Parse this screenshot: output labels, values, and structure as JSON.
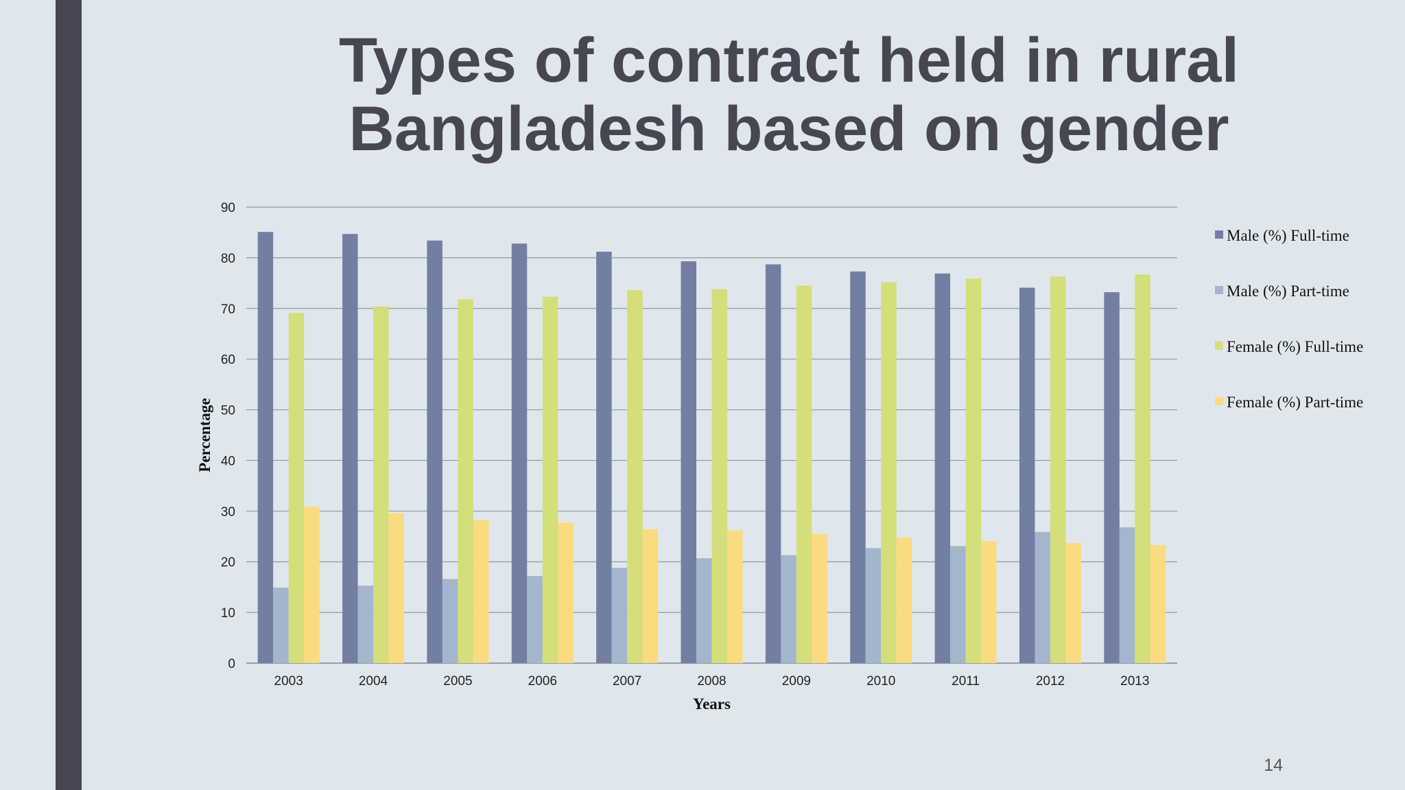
{
  "slide": {
    "title_line1": "Types of contract held in rural",
    "title_line2": "Bangladesh based on gender",
    "page_number": "14",
    "colors": {
      "background": "#e0e7ec",
      "side_bar": "#464753",
      "title": "#464753"
    }
  },
  "chart_data": {
    "type": "bar",
    "title": "Types of contract held in rural Bangladesh based on gender",
    "xlabel": "Years",
    "ylabel": "Percentage",
    "ylim": [
      0,
      90
    ],
    "yticks": [
      0,
      10,
      20,
      30,
      40,
      50,
      60,
      70,
      80,
      90
    ],
    "grid": true,
    "legend_position": "right",
    "categories": [
      "2003",
      "2004",
      "2005",
      "2006",
      "2007",
      "2008",
      "2009",
      "2010",
      "2011",
      "2012",
      "2013"
    ],
    "series": [
      {
        "name": "Male (%) Full-time",
        "color": "#737ea3",
        "values": [
          85.1,
          84.7,
          83.4,
          82.8,
          81.2,
          79.3,
          78.7,
          77.3,
          76.9,
          74.1,
          73.2
        ]
      },
      {
        "name": "Male (%) Part-time",
        "color": "#a3b6cd",
        "values": [
          14.9,
          15.3,
          16.6,
          17.2,
          18.8,
          20.7,
          21.3,
          22.7,
          23.1,
          25.9,
          26.8
        ]
      },
      {
        "name": "Female (%) Full-time",
        "color": "#d4de7a",
        "values": [
          69.1,
          70.4,
          71.8,
          72.3,
          73.6,
          73.8,
          74.5,
          75.2,
          75.9,
          76.3,
          76.7
        ]
      },
      {
        "name": "Female (%) Part-time",
        "color": "#fadb80",
        "values": [
          30.9,
          29.6,
          28.2,
          27.7,
          26.4,
          26.2,
          25.5,
          24.8,
          24.1,
          23.7,
          23.3
        ]
      }
    ]
  }
}
